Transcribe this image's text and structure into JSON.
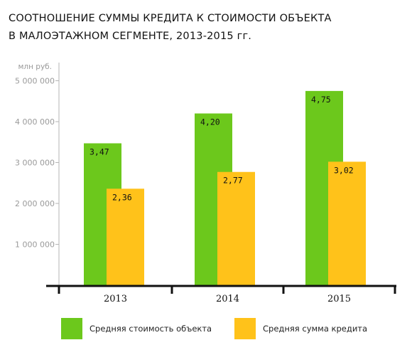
{
  "chart_data": {
    "type": "bar",
    "title_lines": [
      "СООТНОШЕНИЕ СУММЫ КРЕДИТА К СТОИМОСТИ ОБЪЕКТА",
      "В МАЛОЭТАЖНОМ СЕГМЕНТЕ, 2013-2015 гг."
    ],
    "unit_label": "млн руб.",
    "categories": [
      "2013",
      "2014",
      "2015"
    ],
    "series": [
      {
        "name": "Средняя стоимость объекта",
        "values": [
          3.47,
          4.2,
          4.75
        ],
        "labels": [
          "3,47",
          "4,20",
          "4,75"
        ],
        "color": "#6cc81c"
      },
      {
        "name": "Средняя сумма кредита",
        "values": [
          2.36,
          2.77,
          3.02
        ],
        "labels": [
          "2,36",
          "2,77",
          "3,02"
        ],
        "color": "#ffc21a"
      }
    ],
    "y_ticks": [
      1,
      2,
      3,
      4,
      5
    ],
    "y_tick_labels": [
      "1 000 000",
      "2 000 000",
      "3 000 000",
      "4 000 000",
      "5 000 000"
    ],
    "ylim": [
      0,
      5.5
    ],
    "grid": false,
    "legend_position": "bottom"
  }
}
